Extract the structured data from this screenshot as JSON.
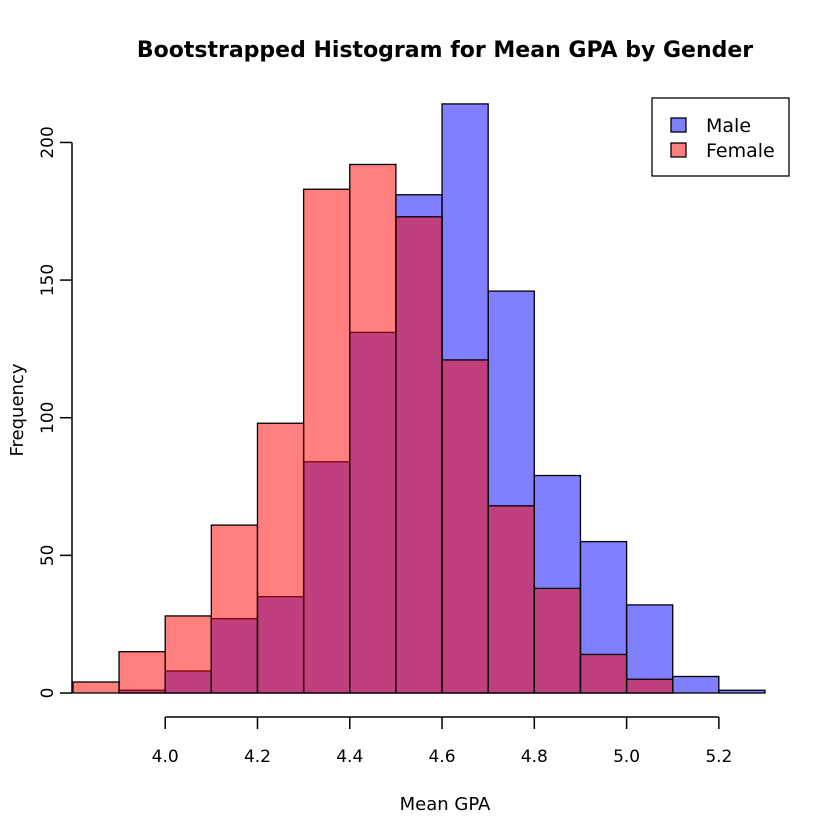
{
  "chart_data": {
    "type": "bar",
    "title": "Bootstrapped Histogram for Mean GPA by Gender",
    "xlabel": "Mean GPA",
    "ylabel": "Frequency",
    "xlim": [
      3.85,
      5.3
    ],
    "ylim": [
      0,
      220
    ],
    "x_ticks": [
      4.0,
      4.2,
      4.4,
      4.6,
      4.8,
      5.0,
      5.2
    ],
    "x_tick_labels": [
      "4.0",
      "4.2",
      "4.4",
      "4.6",
      "4.8",
      "5.0",
      "5.2"
    ],
    "y_ticks": [
      0,
      50,
      100,
      150,
      200
    ],
    "y_tick_labels": [
      "0",
      "50",
      "100",
      "150",
      "200"
    ],
    "bin_width": 0.1,
    "legend_position": "top-right",
    "series": [
      {
        "name": "Male",
        "color": "#8080ff",
        "bins": [
          {
            "start": 3.9,
            "count": 1
          },
          {
            "start": 4.0,
            "count": 8
          },
          {
            "start": 4.1,
            "count": 27
          },
          {
            "start": 4.2,
            "count": 35
          },
          {
            "start": 4.3,
            "count": 84
          },
          {
            "start": 4.4,
            "count": 131
          },
          {
            "start": 4.5,
            "count": 181
          },
          {
            "start": 4.6,
            "count": 214
          },
          {
            "start": 4.7,
            "count": 146
          },
          {
            "start": 4.8,
            "count": 79
          },
          {
            "start": 4.9,
            "count": 55
          },
          {
            "start": 5.0,
            "count": 32
          },
          {
            "start": 5.1,
            "count": 6
          },
          {
            "start": 5.2,
            "count": 1
          }
        ]
      },
      {
        "name": "Female",
        "color": "#ff8080",
        "bins": [
          {
            "start": 3.8,
            "count": 4
          },
          {
            "start": 3.9,
            "count": 15
          },
          {
            "start": 4.0,
            "count": 28
          },
          {
            "start": 4.1,
            "count": 61
          },
          {
            "start": 4.2,
            "count": 98
          },
          {
            "start": 4.3,
            "count": 183
          },
          {
            "start": 4.4,
            "count": 192
          },
          {
            "start": 4.5,
            "count": 173
          },
          {
            "start": 4.6,
            "count": 121
          },
          {
            "start": 4.7,
            "count": 68
          },
          {
            "start": 4.8,
            "count": 38
          },
          {
            "start": 4.9,
            "count": 14
          },
          {
            "start": 5.0,
            "count": 5
          }
        ]
      }
    ]
  }
}
